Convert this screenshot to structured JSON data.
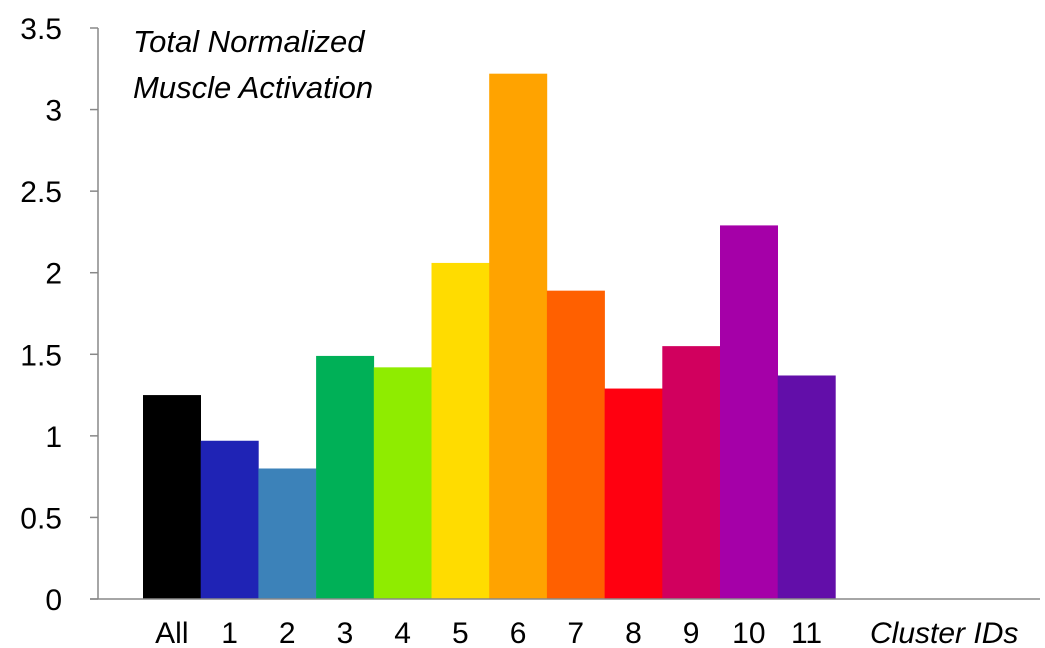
{
  "chart_data": {
    "type": "bar",
    "title_lines": [
      "Total Normalized",
      "Muscle Activation"
    ],
    "xlabel": "Cluster IDs",
    "ylabel": "",
    "ylim": [
      0,
      3.5
    ],
    "yticks": [
      "0",
      "0.5",
      "1",
      "1.5",
      "2",
      "2.5",
      "3",
      "3.5"
    ],
    "categories": [
      "All",
      "1",
      "2",
      "3",
      "4",
      "5",
      "6",
      "7",
      "8",
      "9",
      "10",
      "11"
    ],
    "values": [
      1.25,
      0.97,
      0.8,
      1.49,
      1.42,
      2.06,
      3.22,
      1.89,
      1.29,
      1.55,
      2.29,
      1.37
    ],
    "colors": [
      "#000000",
      "#1f23b5",
      "#3c82b9",
      "#00b057",
      "#8fec00",
      "#ffdc00",
      "#ffa300",
      "#ff6000",
      "#ff0010",
      "#d1005e",
      "#a500a8",
      "#620ea9"
    ],
    "grid": false,
    "legend": "none"
  }
}
